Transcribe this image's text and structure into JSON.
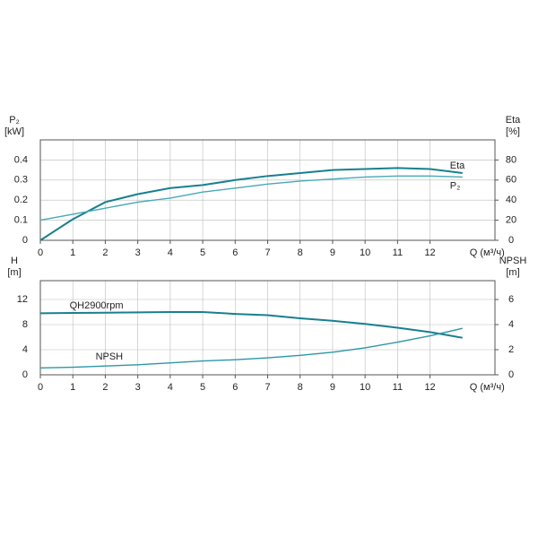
{
  "chart_data": [
    {
      "type": "line",
      "y_label": "P₂",
      "y_unit": "[kW]",
      "y2_label": "Eta",
      "y2_unit": "[%]",
      "x_label": "Q (м³/ч)",
      "x": [
        0,
        1,
        2,
        3,
        4,
        5,
        6,
        7,
        8,
        9,
        10,
        11,
        12,
        13
      ],
      "xlim": [
        0,
        14
      ],
      "xticks": [
        0,
        1,
        2,
        3,
        4,
        5,
        6,
        7,
        8,
        9,
        10,
        11,
        12
      ],
      "ylim": [
        0,
        0.5
      ],
      "yticks": [
        0,
        0.1,
        0.2,
        0.3,
        0.4
      ],
      "y2lim": [
        0,
        100
      ],
      "y2ticks": [
        0,
        20,
        40,
        60,
        80
      ],
      "grid": true,
      "series": [
        {
          "name": "Eta",
          "color": "#17808f",
          "axis": "y2",
          "values": [
            0,
            21,
            38,
            46,
            52,
            55,
            60,
            64,
            67,
            70,
            71,
            72,
            71,
            67
          ]
        },
        {
          "name": "P₂",
          "color": "#46a9b8",
          "axis": "y",
          "values": [
            0.1,
            0.13,
            0.16,
            0.19,
            0.21,
            0.24,
            0.26,
            0.28,
            0.295,
            0.305,
            0.315,
            0.32,
            0.32,
            0.315
          ]
        }
      ]
    },
    {
      "type": "line",
      "y_label": "H",
      "y_unit": "[m]",
      "y2_label": "NPSH",
      "y2_unit": "[m]",
      "x_label": "Q (м³/ч)",
      "x": [
        0,
        1,
        2,
        3,
        4,
        5,
        6,
        7,
        8,
        9,
        10,
        11,
        12,
        13
      ],
      "xlim": [
        0,
        14
      ],
      "xticks": [
        0,
        1,
        2,
        3,
        4,
        5,
        6,
        7,
        8,
        9,
        10,
        11,
        12
      ],
      "ylim": [
        0,
        15
      ],
      "yticks": [
        0,
        4,
        8,
        12
      ],
      "y2lim": [
        0,
        7.5
      ],
      "y2ticks": [
        0,
        2,
        4,
        6
      ],
      "grid": true,
      "series": [
        {
          "name": "QH2900rpm",
          "color": "#17808f",
          "axis": "y",
          "values": [
            9.8,
            9.85,
            9.9,
            9.95,
            10.0,
            10.0,
            9.7,
            9.5,
            9.0,
            8.6,
            8.1,
            7.5,
            6.8,
            5.9
          ]
        },
        {
          "name": "NPSH",
          "color": "#2b97a6",
          "axis": "y2",
          "values": [
            0.55,
            0.6,
            0.7,
            0.8,
            0.95,
            1.1,
            1.2,
            1.35,
            1.55,
            1.8,
            2.15,
            2.6,
            3.1,
            3.7
          ]
        }
      ]
    }
  ]
}
